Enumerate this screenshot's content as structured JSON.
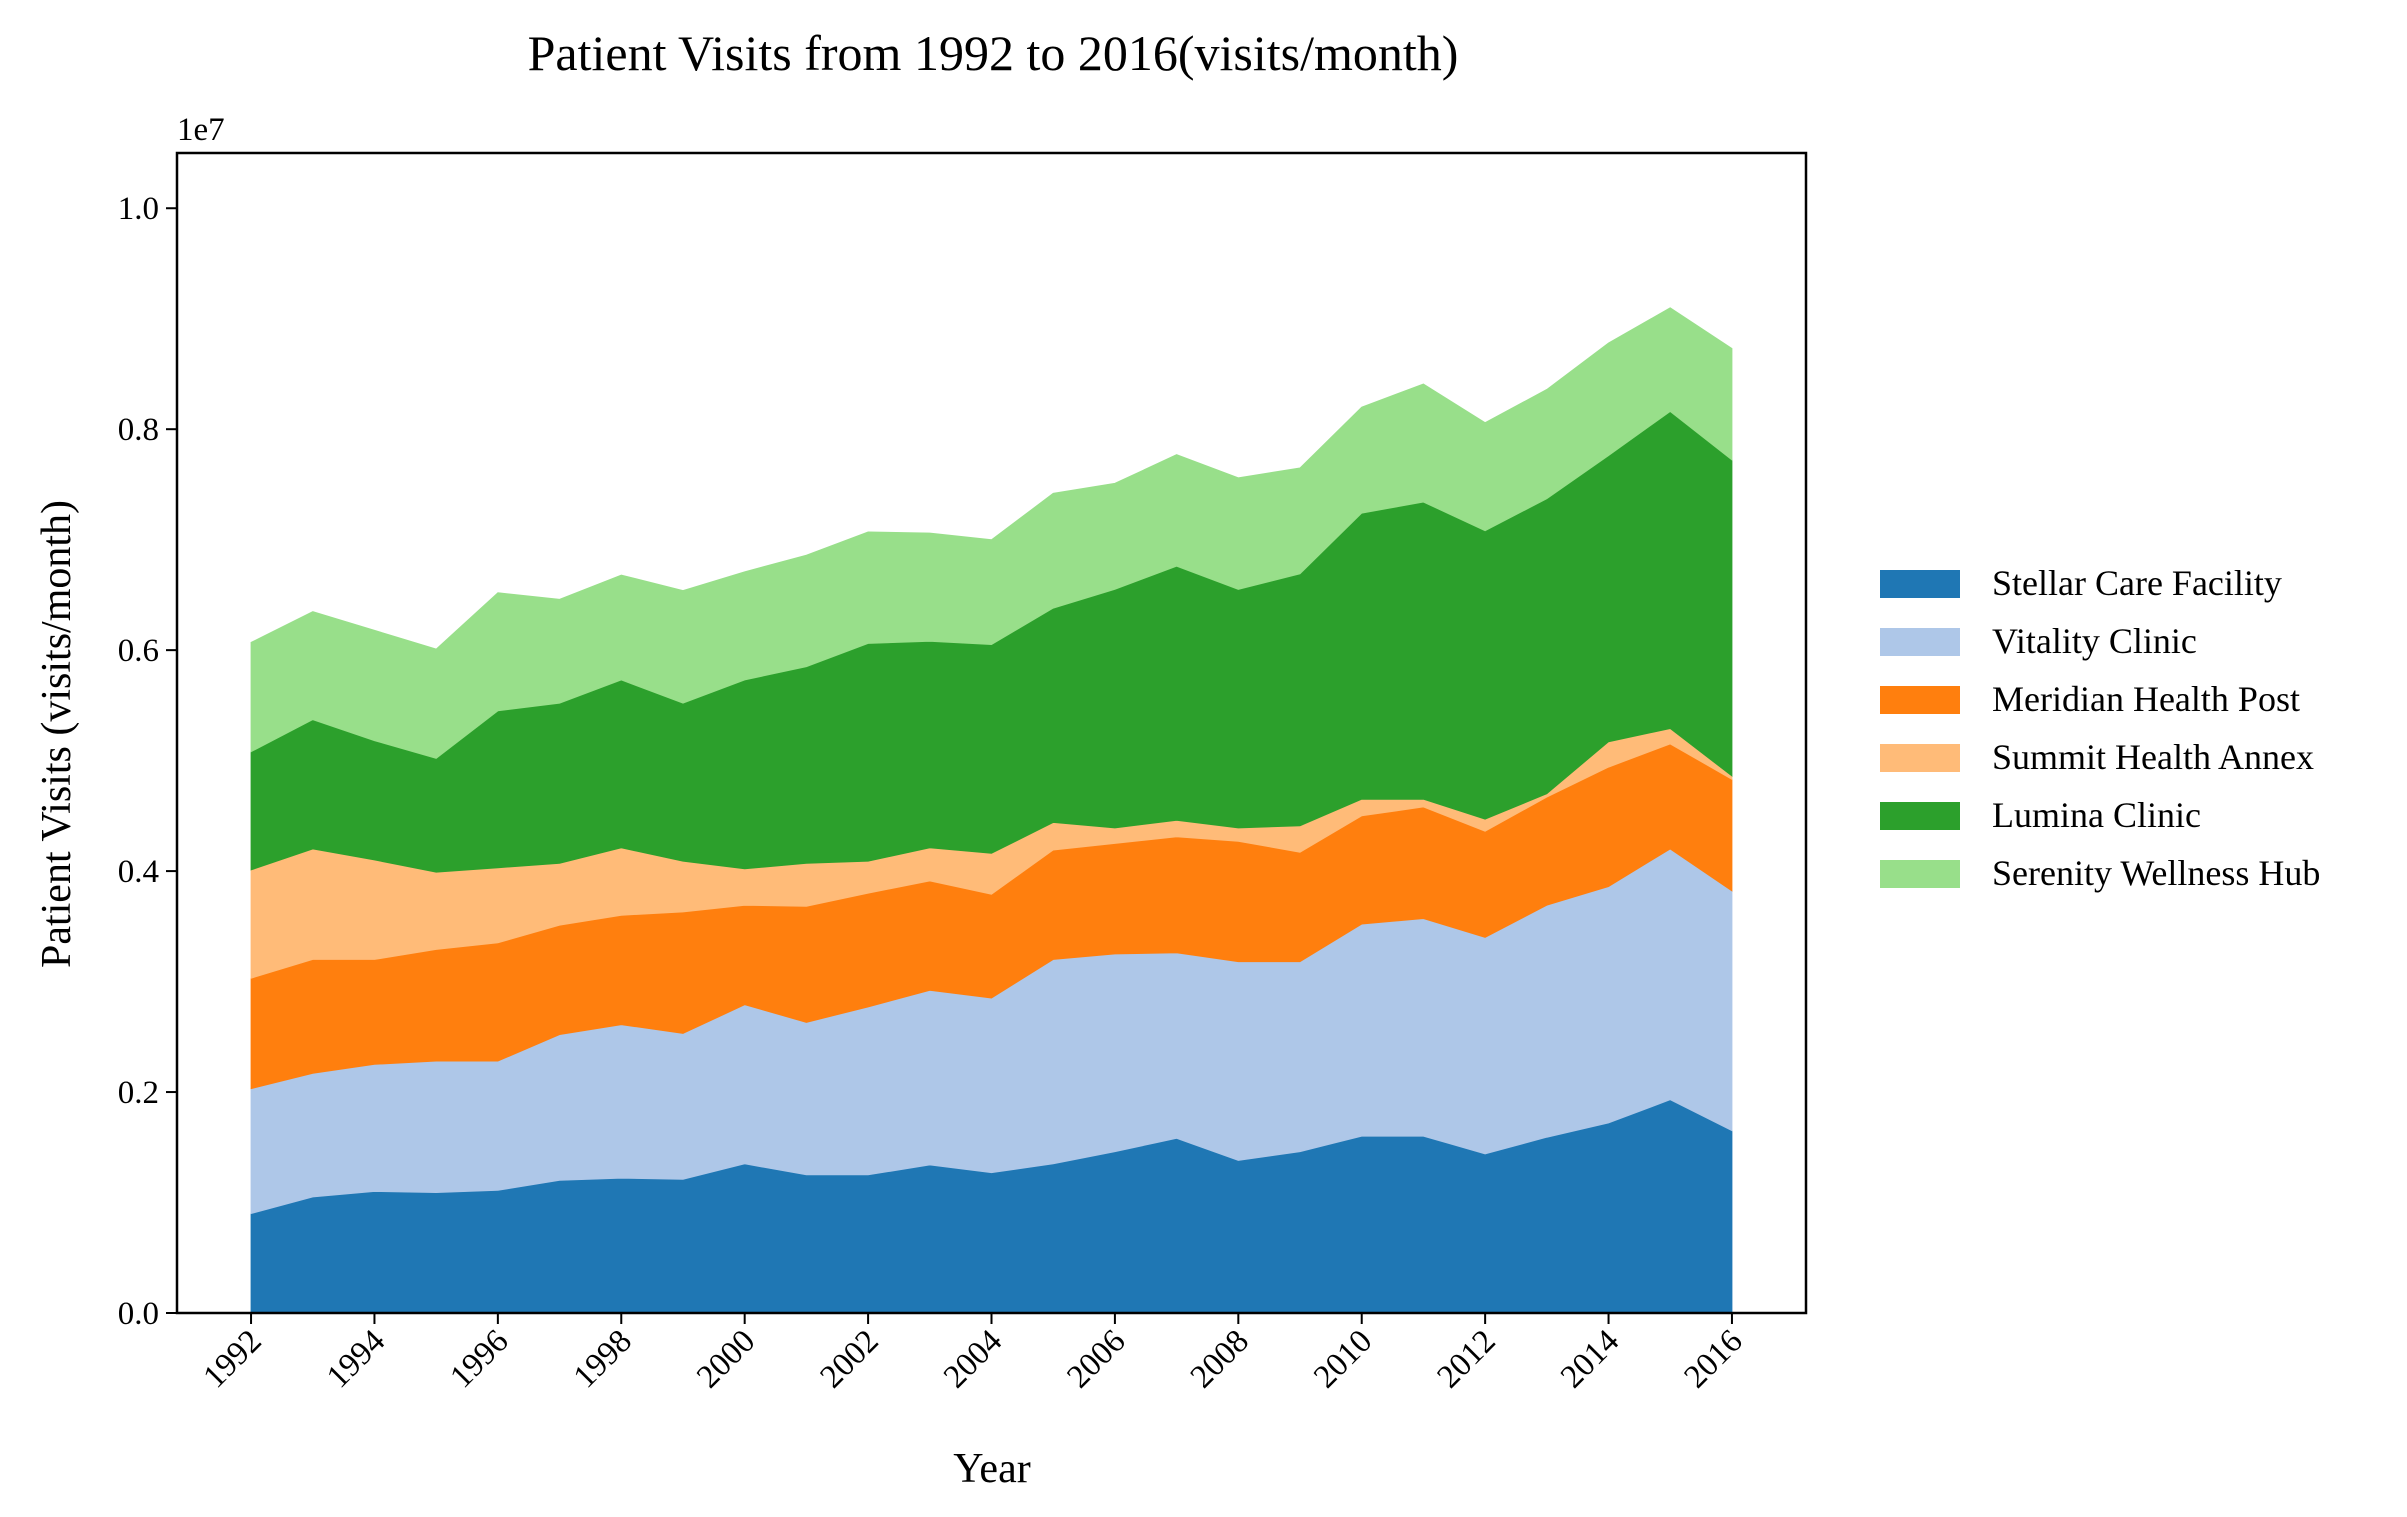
{
  "chart_data": {
    "type": "area",
    "stacked": true,
    "title": "Patient Visits from 1992 to 2016(visits/month)",
    "xlabel": "Year",
    "ylabel": "Patient Visits (visits/month)",
    "y_offset_label": "1e7",
    "xlim": [
      1990.8,
      2017.2
    ],
    "ylim": [
      0,
      10500000
    ],
    "x_ticks": [
      1992,
      1994,
      1996,
      1998,
      2000,
      2002,
      2004,
      2006,
      2008,
      2010,
      2012,
      2014,
      2016
    ],
    "y_ticks": [
      0,
      2000000,
      4000000,
      6000000,
      8000000,
      10000000
    ],
    "y_tick_labels": [
      "0.0",
      "0.2",
      "0.4",
      "0.6",
      "0.8",
      "1.0"
    ],
    "grid": false,
    "legend_position": "outside-right",
    "x": [
      1992,
      1993,
      1994,
      1995,
      1996,
      1997,
      1998,
      1999,
      2000,
      2001,
      2002,
      2003,
      2004,
      2005,
      2006,
      2007,
      2008,
      2009,
      2010,
      2011,
      2012,
      2013,
      2014,
      2015,
      2016
    ],
    "series": [
      {
        "name": "Stellar Care Facility",
        "color": "#1f77b4",
        "values": [
          900000,
          1050000,
          1100000,
          1090000,
          1110000,
          1200000,
          1220000,
          1210000,
          1350000,
          1250000,
          1250000,
          1340000,
          1270000,
          1350000,
          1460000,
          1580000,
          1380000,
          1460000,
          1600000,
          1600000,
          1440000,
          1590000,
          1720000,
          1930000,
          1650000
        ]
      },
      {
        "name": "Vitality Clinic",
        "color": "#aec7e8",
        "values": [
          1130000,
          1120000,
          1150000,
          1190000,
          1170000,
          1320000,
          1390000,
          1320000,
          1440000,
          1380000,
          1520000,
          1580000,
          1580000,
          1850000,
          1790000,
          1680000,
          1800000,
          1720000,
          1920000,
          1970000,
          1960000,
          2100000,
          2140000,
          2270000,
          2170000
        ]
      },
      {
        "name": "Meridian Health Post",
        "color": "#ff7f0e",
        "values": [
          1000000,
          1030000,
          950000,
          1010000,
          1070000,
          990000,
          990000,
          1100000,
          900000,
          1050000,
          1030000,
          990000,
          940000,
          990000,
          1000000,
          1050000,
          1090000,
          990000,
          980000,
          1010000,
          960000,
          980000,
          1080000,
          950000,
          1010000
        ]
      },
      {
        "name": "Summit Health Annex",
        "color": "#ffbb78",
        "values": [
          980000,
          1000000,
          900000,
          700000,
          680000,
          560000,
          610000,
          460000,
          330000,
          390000,
          290000,
          300000,
          370000,
          250000,
          140000,
          150000,
          120000,
          240000,
          150000,
          70000,
          110000,
          30000,
          230000,
          140000,
          30000
        ]
      },
      {
        "name": "Lumina Clinic",
        "color": "#2ca02c",
        "values": [
          1070000,
          1170000,
          1080000,
          1030000,
          1420000,
          1450000,
          1520000,
          1430000,
          1710000,
          1780000,
          1970000,
          1870000,
          1890000,
          1940000,
          2160000,
          2300000,
          2160000,
          2280000,
          2590000,
          2690000,
          2610000,
          2670000,
          2590000,
          2870000,
          2860000
        ]
      },
      {
        "name": "Serenity Wellness Hub",
        "color": "#98df8a",
        "values": [
          990000,
          980000,
          1000000,
          990000,
          1070000,
          940000,
          950000,
          1020000,
          980000,
          1010000,
          1010000,
          980000,
          950000,
          1040000,
          960000,
          1010000,
          1010000,
          960000,
          960000,
          1070000,
          980000,
          990000,
          1020000,
          940000,
          1010000
        ]
      }
    ]
  }
}
